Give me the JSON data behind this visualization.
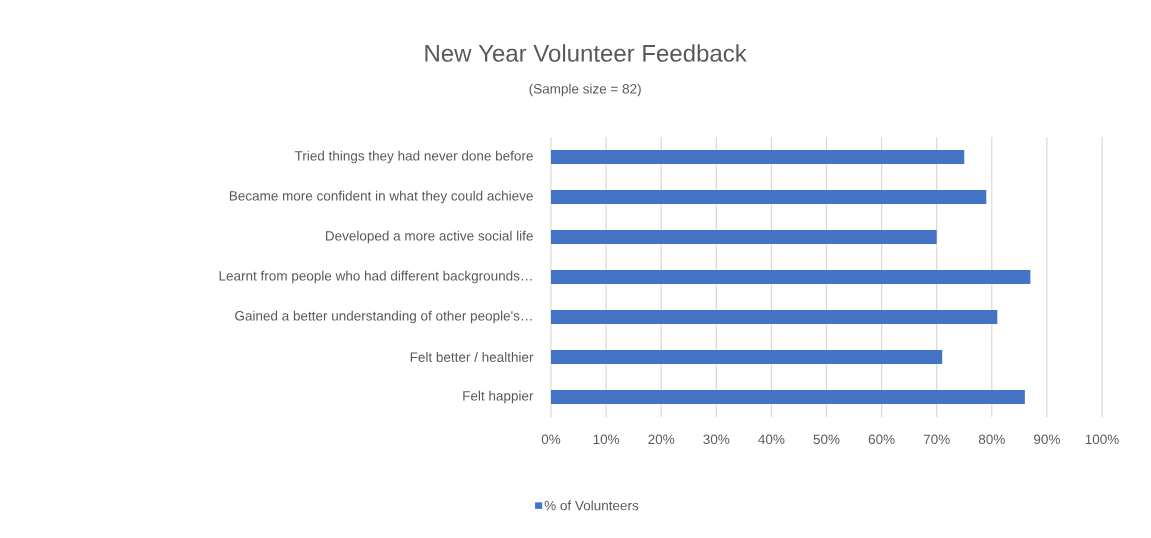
{
  "chart_data": {
    "type": "bar",
    "orientation": "horizontal",
    "title": "New Year Volunteer Feedback",
    "subtitle": "(Sample size = 82)",
    "categories": [
      "Tried things they had never done before",
      "Became more confident in what they could achieve",
      "Developed a more active social life",
      "Learnt from people who had different backgrounds…",
      "Gained a better understanding of other people's…",
      "Felt better / healthier",
      "Felt happier"
    ],
    "series": [
      {
        "name": "% of Volunteers",
        "color": "#4472c4",
        "values": [
          75,
          79,
          70,
          87,
          81,
          71,
          86
        ]
      }
    ],
    "xlim": [
      0,
      100
    ],
    "xticks": [
      {
        "value": 0,
        "label": "0%"
      },
      {
        "value": 10,
        "label": "10%"
      },
      {
        "value": 20,
        "label": "20%"
      },
      {
        "value": 30,
        "label": "30%"
      },
      {
        "value": 40,
        "label": "40%"
      },
      {
        "value": 50,
        "label": "50%"
      },
      {
        "value": 60,
        "label": "60%"
      },
      {
        "value": 70,
        "label": "70%"
      },
      {
        "value": 80,
        "label": "80%"
      },
      {
        "value": 90,
        "label": "90%"
      },
      {
        "value": 100,
        "label": "100%"
      }
    ],
    "grid": "x",
    "legend": "bottom"
  }
}
